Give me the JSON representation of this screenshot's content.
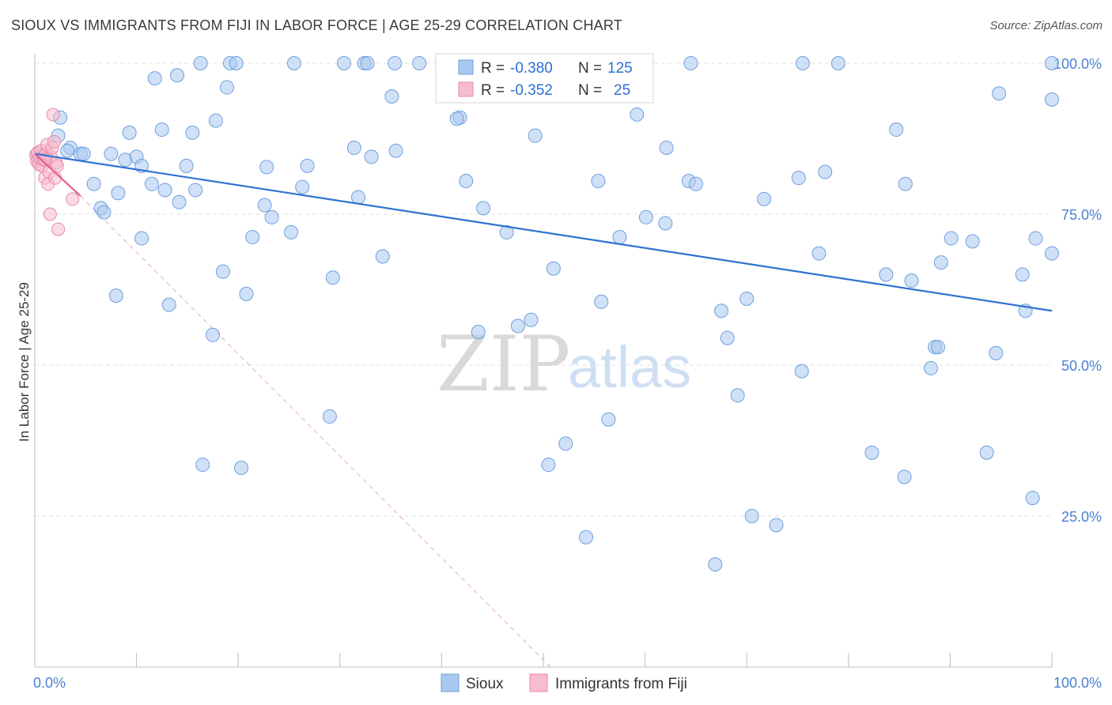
{
  "title": "SIOUX VS IMMIGRANTS FROM FIJI IN LABOR FORCE | AGE 25-29 CORRELATION CHART",
  "source": "Source: ZipAtlas.com",
  "watermark": {
    "zip": "ZIP",
    "atlas": "atlas"
  },
  "colors": {
    "sioux_fill": "#a9c8f0",
    "sioux_stroke": "#6f9fdc",
    "sioux_line": "#2f72d2",
    "fiji_fill": "#f7bccd",
    "fiji_stroke": "#e98aa8",
    "fiji_line": "#e0628d",
    "tick_label": "#4a7fd0",
    "grid": "#e2e2e2"
  },
  "legend": {
    "rows": [
      {
        "r_label": "R =",
        "r_value": "-0.380",
        "n_label": "N =",
        "n_value": "125"
      },
      {
        "r_label": "R =",
        "r_value": "-0.352",
        "n_label": "N =",
        "n_value": "25"
      }
    ]
  },
  "chart_data": {
    "type": "scatter",
    "title": "SIOUX VS IMMIGRANTS FROM FIJI IN LABOR FORCE | AGE 25-29 CORRELATION CHART",
    "xlabel": "",
    "ylabel": "In Labor Force | Age 25-29",
    "xlim": [
      0,
      100
    ],
    "ylim": [
      0,
      102
    ],
    "x_tick_labels": [
      "0.0%",
      "100.0%"
    ],
    "y_ticks": [
      25,
      50,
      75,
      100
    ],
    "y_tick_labels": [
      "25.0%",
      "50.0%",
      "75.0%",
      "100.0%"
    ],
    "grid": true,
    "legend_position": "top-center",
    "bottom_legend": [
      "Sioux",
      "Immigrants from Fiji"
    ],
    "series": [
      {
        "name": "Sioux",
        "trend": {
          "x": [
            0,
            100
          ],
          "y": [
            85,
            59
          ]
        },
        "points": [
          [
            0.3,
            85.0
          ],
          [
            0.5,
            84.5
          ],
          [
            0.8,
            84.0
          ],
          [
            2.5,
            91.0
          ],
          [
            2.3,
            88.0
          ],
          [
            3.5,
            86.0
          ],
          [
            3.2,
            85.5
          ],
          [
            4.5,
            85.0
          ],
          [
            4.8,
            85.0
          ],
          [
            5.8,
            80.0
          ],
          [
            6.5,
            76.0
          ],
          [
            6.8,
            75.3
          ],
          [
            7.5,
            85.0
          ],
          [
            8.2,
            78.5
          ],
          [
            8.0,
            61.5
          ],
          [
            8.9,
            84.0
          ],
          [
            9.3,
            88.5
          ],
          [
            10.0,
            84.5
          ],
          [
            10.5,
            83.0
          ],
          [
            10.5,
            71.0
          ],
          [
            11.5,
            80.0
          ],
          [
            11.8,
            97.5
          ],
          [
            12.5,
            89.0
          ],
          [
            12.8,
            79.0
          ],
          [
            13.2,
            60.0
          ],
          [
            14.0,
            98.0
          ],
          [
            14.2,
            77.0
          ],
          [
            14.9,
            83.0
          ],
          [
            15.5,
            88.5
          ],
          [
            15.8,
            79.0
          ],
          [
            16.3,
            100.0
          ],
          [
            17.5,
            55.0
          ],
          [
            16.5,
            33.5
          ],
          [
            17.8,
            90.5
          ],
          [
            18.5,
            65.5
          ],
          [
            18.9,
            96.0
          ],
          [
            19.2,
            100.0
          ],
          [
            19.8,
            100.0
          ],
          [
            20.3,
            33.0
          ],
          [
            20.8,
            61.8
          ],
          [
            21.4,
            71.2
          ],
          [
            22.6,
            76.5
          ],
          [
            22.8,
            82.8
          ],
          [
            23.3,
            74.5
          ],
          [
            25.2,
            72.0
          ],
          [
            25.5,
            100.0
          ],
          [
            26.3,
            79.5
          ],
          [
            26.8,
            83.0
          ],
          [
            29.0,
            41.5
          ],
          [
            29.3,
            64.5
          ],
          [
            30.4,
            100.0
          ],
          [
            31.4,
            86.0
          ],
          [
            31.8,
            77.8
          ],
          [
            32.4,
            100.0
          ],
          [
            32.7,
            100.0
          ],
          [
            33.1,
            84.5
          ],
          [
            34.2,
            68.0
          ],
          [
            35.1,
            94.5
          ],
          [
            35.5,
            85.5
          ],
          [
            35.4,
            100.0
          ],
          [
            37.8,
            100.0
          ],
          [
            40.8,
            100.0
          ],
          [
            41.8,
            91.0
          ],
          [
            41.5,
            90.8
          ],
          [
            42.4,
            80.5
          ],
          [
            43.6,
            55.5
          ],
          [
            44.1,
            76.0
          ],
          [
            45.0,
            100.0
          ],
          [
            46.4,
            72.0
          ],
          [
            47.5,
            56.5
          ],
          [
            48.8,
            57.5
          ],
          [
            49.2,
            88.0
          ],
          [
            50.5,
            33.5
          ],
          [
            51.0,
            66.0
          ],
          [
            52.2,
            37.0
          ],
          [
            53.2,
            100.0
          ],
          [
            54.2,
            21.5
          ],
          [
            55.4,
            80.5
          ],
          [
            55.7,
            60.5
          ],
          [
            56.4,
            41.0
          ],
          [
            57.2,
            100.0
          ],
          [
            57.5,
            71.2
          ],
          [
            59.2,
            91.5
          ],
          [
            60.1,
            74.5
          ],
          [
            62.0,
            73.5
          ],
          [
            62.1,
            86.0
          ],
          [
            64.5,
            100.0
          ],
          [
            64.3,
            80.5
          ],
          [
            65.0,
            80.0
          ],
          [
            66.9,
            17.0
          ],
          [
            67.5,
            59.0
          ],
          [
            68.1,
            54.5
          ],
          [
            69.1,
            45.0
          ],
          [
            70.0,
            61.0
          ],
          [
            70.5,
            25.0
          ],
          [
            71.7,
            77.5
          ],
          [
            72.9,
            23.5
          ],
          [
            75.1,
            81.0
          ],
          [
            75.4,
            49.0
          ],
          [
            75.5,
            100.0
          ],
          [
            77.1,
            68.5
          ],
          [
            77.7,
            82.0
          ],
          [
            79.0,
            100.0
          ],
          [
            82.3,
            35.5
          ],
          [
            83.7,
            65.0
          ],
          [
            84.7,
            89.0
          ],
          [
            85.5,
            31.5
          ],
          [
            85.6,
            80.0
          ],
          [
            86.2,
            64.0
          ],
          [
            88.1,
            49.5
          ],
          [
            88.5,
            53.0
          ],
          [
            88.8,
            53.0
          ],
          [
            89.1,
            67.0
          ],
          [
            90.1,
            71.0
          ],
          [
            92.2,
            70.5
          ],
          [
            93.6,
            35.5
          ],
          [
            94.8,
            95.0
          ],
          [
            94.5,
            52.0
          ],
          [
            97.1,
            65.0
          ],
          [
            97.4,
            59.0
          ],
          [
            98.1,
            28.0
          ],
          [
            98.4,
            71.0
          ],
          [
            100.0,
            68.5
          ],
          [
            100.0,
            94.0
          ],
          [
            100.0,
            100.0
          ]
        ]
      },
      {
        "name": "Immigrants from Fiji",
        "trend": {
          "x": [
            0,
            4.5
          ],
          "y": [
            85,
            78
          ]
        },
        "extended_trend": {
          "x": [
            4.5,
            50.7
          ],
          "y": [
            78,
            0
          ]
        },
        "points": [
          [
            0.1,
            84.8
          ],
          [
            0.2,
            83.8
          ],
          [
            0.3,
            85.2
          ],
          [
            0.4,
            83.3
          ],
          [
            0.5,
            84.3
          ],
          [
            0.6,
            85.5
          ],
          [
            0.7,
            83.0
          ],
          [
            0.8,
            84.1
          ],
          [
            0.9,
            84.6
          ],
          [
            1.0,
            81.0
          ],
          [
            1.1,
            85.0
          ],
          [
            1.2,
            86.5
          ],
          [
            1.3,
            80.0
          ],
          [
            1.4,
            82.0
          ],
          [
            1.5,
            75.0
          ],
          [
            1.6,
            84.5
          ],
          [
            1.7,
            86.0
          ],
          [
            1.8,
            91.5
          ],
          [
            1.9,
            87.0
          ],
          [
            2.0,
            81.0
          ],
          [
            2.1,
            83.5
          ],
          [
            2.2,
            83.0
          ],
          [
            2.3,
            72.5
          ],
          [
            3.7,
            77.5
          ],
          [
            1.0,
            84.0
          ]
        ]
      }
    ]
  }
}
